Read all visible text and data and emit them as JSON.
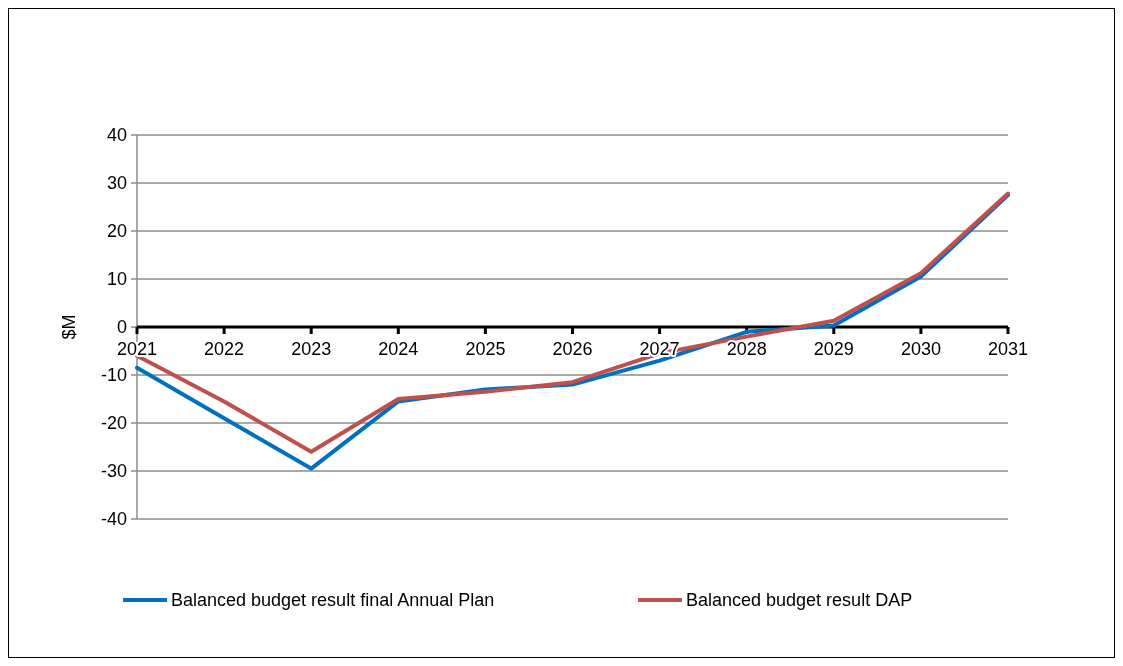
{
  "chart_data": {
    "type": "line",
    "ylabel": "$M",
    "categories": [
      "2021",
      "2022",
      "2023",
      "2024",
      "2025",
      "2026",
      "2027",
      "2028",
      "2029",
      "2030",
      "2031"
    ],
    "series": [
      {
        "name": "Balanced budget result final Annual Plan",
        "color": "#0070c0",
        "values": [
          -8.5,
          -19,
          -29.5,
          -15.5,
          -13,
          -12,
          -7,
          -1,
          0.3,
          10.5,
          27.5
        ]
      },
      {
        "name": "Balanced budget result DAP",
        "color": "#c0504d",
        "values": [
          -6,
          -15.5,
          -26,
          -15,
          -13.5,
          -11.5,
          -5.5,
          -2,
          1.3,
          11.2,
          27.8
        ]
      }
    ],
    "ylim": [
      -40,
      40
    ],
    "yticks": [
      -40,
      -30,
      -20,
      -10,
      0,
      10,
      20,
      30,
      40
    ],
    "grid": "y",
    "legend": "bottom",
    "marker": "none",
    "line_style": "solid"
  }
}
